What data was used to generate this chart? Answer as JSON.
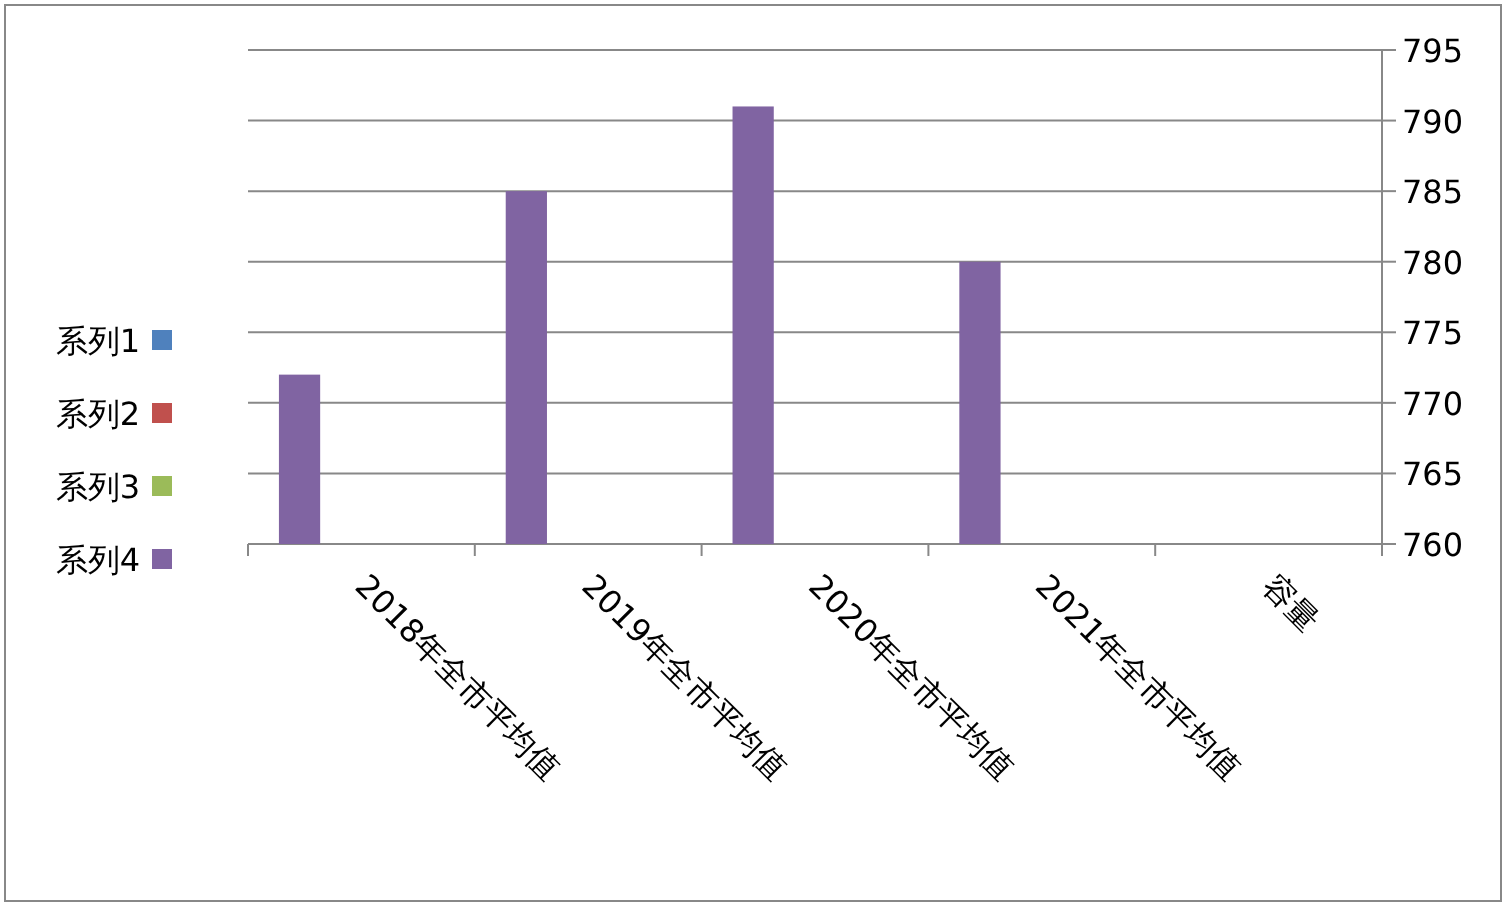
{
  "chart_data": {
    "type": "bar",
    "categories": [
      "2018年全市平均值",
      "2019年全市平均值",
      "2020年全市平均值",
      "2021年全市平均值",
      "容量"
    ],
    "series": [
      {
        "name": "系列1",
        "color": "#4f81bd",
        "values": [
          null,
          null,
          null,
          null,
          null
        ]
      },
      {
        "name": "系列2",
        "color": "#c0504d",
        "values": [
          null,
          null,
          null,
          null,
          null
        ]
      },
      {
        "name": "系列3",
        "color": "#9bbb59",
        "values": [
          null,
          null,
          null,
          null,
          null
        ]
      },
      {
        "name": "系列4",
        "color": "#8064a2",
        "values": [
          772,
          785,
          791,
          780,
          null
        ]
      }
    ],
    "ylim": [
      760,
      795
    ],
    "yticks": [
      760,
      765,
      770,
      775,
      780,
      785,
      790,
      795
    ],
    "grid": "y",
    "legend": "left"
  }
}
